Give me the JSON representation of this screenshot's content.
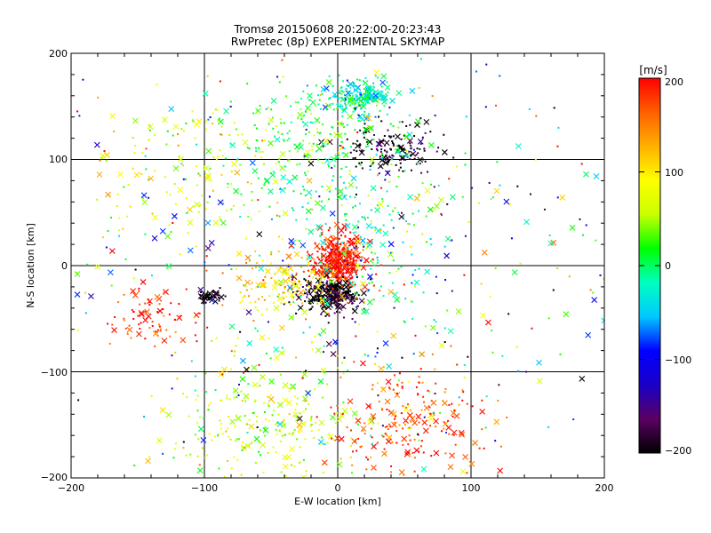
{
  "chart_data": {
    "type": "scatter",
    "title": "Tromsø 20150608 20:22:00-20:23:43",
    "subtitle": "RwPretec (8p) EXPERIMENTAL SKYMAP",
    "xlabel": "E-W location [km]",
    "ylabel": "N-S location [km]",
    "xlim": [
      -200,
      200
    ],
    "ylim": [
      -200,
      200
    ],
    "x_ticks": [
      "−200",
      "−100",
      "0",
      "100",
      "200"
    ],
    "y_ticks": [
      "200",
      "100",
      "0",
      "−100",
      "−200"
    ],
    "grid": true,
    "markers": [
      "dot",
      "cross"
    ],
    "colorbar": {
      "label": "[m/s]",
      "range": [
        -200,
        200
      ],
      "ticks": [
        "200",
        "100",
        "0",
        "−100",
        "−200"
      ],
      "colormap": [
        "#000000",
        "#5a0060",
        "#1a00c8",
        "#0000ff",
        "#00c8ff",
        "#00ffc0",
        "#00ff00",
        "#c8ff00",
        "#ffff00",
        "#ffb000",
        "#ff6000",
        "#ff0000"
      ]
    },
    "clusters": [
      {
        "x": 0,
        "y": 5,
        "sx": 10,
        "sy": 12,
        "n": 400,
        "velocity": 200
      },
      {
        "x": -5,
        "y": -28,
        "sx": 12,
        "sy": 8,
        "n": 260,
        "velocity": -200
      },
      {
        "x": 15,
        "y": 160,
        "sx": 12,
        "sy": 8,
        "n": 200,
        "velocity": -30
      },
      {
        "x": 40,
        "y": 110,
        "sx": 20,
        "sy": 12,
        "n": 150,
        "velocity": -195
      },
      {
        "x": -95,
        "y": -28,
        "sx": 5,
        "sy": 4,
        "n": 45,
        "velocity": -200
      },
      {
        "x": -40,
        "y": -20,
        "sx": 22,
        "sy": 18,
        "n": 150,
        "velocity": 110
      },
      {
        "x": -20,
        "y": 120,
        "sx": 35,
        "sy": 25,
        "n": 220,
        "velocity": 20
      },
      {
        "x": 20,
        "y": 30,
        "sx": 30,
        "sy": 40,
        "n": 160,
        "velocity": -10
      },
      {
        "x": -50,
        "y": -150,
        "sx": 40,
        "sy": 30,
        "n": 280,
        "velocity": 60
      },
      {
        "x": 50,
        "y": -150,
        "sx": 30,
        "sy": 30,
        "n": 220,
        "velocity": 170
      },
      {
        "x": -140,
        "y": -50,
        "sx": 15,
        "sy": 15,
        "n": 80,
        "velocity": 190
      },
      {
        "x": -110,
        "y": 90,
        "sx": 40,
        "sy": 30,
        "n": 130,
        "velocity": 70
      },
      {
        "x": 0,
        "y": 0,
        "sx": 110,
        "sy": 110,
        "n": 520,
        "velocity": 0
      }
    ]
  }
}
